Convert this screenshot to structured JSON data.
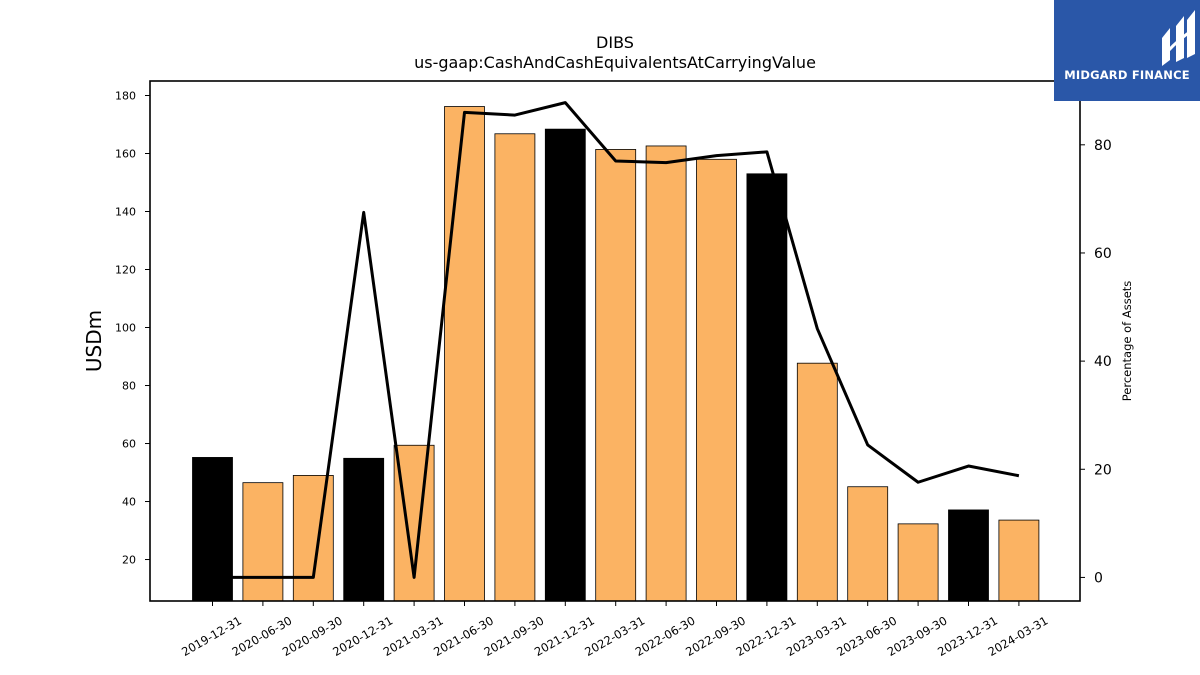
{
  "logo": {
    "text": "MIDGARD FINANCE",
    "icon": "midgard-logo-icon",
    "background": "#2a57a8"
  },
  "chart_data": {
    "type": "bar",
    "title": "DIBS",
    "subtitle": "us-gaap:CashAndCashEquivalentsAtCarryingValue",
    "ylabel": "USDm",
    "y2label": "Percentage of Assets",
    "categories": [
      "2019-12-31",
      "2020-06-30",
      "2020-09-30",
      "2020-12-31",
      "2021-03-31",
      "2021-06-30",
      "2021-09-30",
      "2021-12-31",
      "2022-03-31",
      "2022-06-30",
      "2022-09-30",
      "2022-12-31",
      "2023-03-31",
      "2023-06-30",
      "2023-09-30",
      "2023-12-31",
      "2024-03-31"
    ],
    "series": [
      {
        "kind": "bar",
        "axis": "left",
        "values": [
          55.2,
          46.5,
          49.0,
          54.9,
          59.4,
          176.2,
          166.8,
          168.4,
          161.4,
          162.6,
          158.0,
          153.0,
          87.7,
          45.1,
          32.3,
          37.1,
          33.6
        ]
      },
      {
        "kind": "line",
        "axis": "right",
        "values": [
          0.0,
          0.0,
          0.0,
          67.5,
          0.0,
          86.0,
          85.5,
          87.8,
          77.0,
          76.7,
          78.0,
          78.7,
          46.0,
          24.5,
          17.6,
          20.6,
          18.8
        ]
      }
    ],
    "bar_colors": [
      "#000000",
      "#fbb363",
      "#fbb363",
      "#000000",
      "#fbb363",
      "#fbb363",
      "#fbb363",
      "#000000",
      "#fbb363",
      "#fbb363",
      "#fbb363",
      "#000000",
      "#fbb363",
      "#fbb363",
      "#fbb363",
      "#000000",
      "#fbb363"
    ],
    "line_color": "#000000",
    "ylim": [
      5.7,
      185.0
    ],
    "y2lim": [
      -4.36,
      91.8
    ],
    "yticks": [
      20,
      40,
      60,
      80,
      100,
      120,
      140,
      160,
      180
    ],
    "y2ticks": [
      0,
      20,
      40,
      60,
      80
    ],
    "grid": false,
    "legend": "none"
  }
}
